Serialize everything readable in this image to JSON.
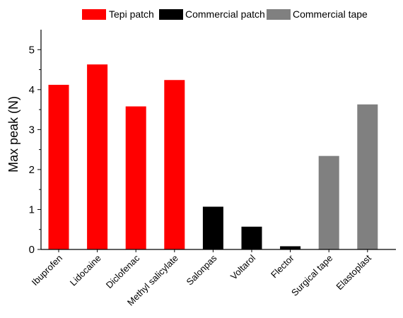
{
  "chart_data": {
    "type": "bar",
    "title": "",
    "xlabel": "",
    "ylabel": "Max peak (N)",
    "ylim": [
      0,
      5.5
    ],
    "yticks": [
      0,
      1,
      2,
      3,
      4,
      5
    ],
    "grid": false,
    "legend_position": "top",
    "categories": [
      "Ibuprofen",
      "Lidocaine",
      "Diclofenac",
      "Methyl salicylate",
      "Salonpas",
      "Voltarol",
      "Flector",
      "Surgical tape",
      "Elastoplast"
    ],
    "values": [
      4.12,
      4.63,
      3.58,
      4.24,
      1.07,
      0.57,
      0.08,
      2.34,
      3.63
    ],
    "groups": [
      "Tepi patch",
      "Tepi patch",
      "Tepi patch",
      "Tepi patch",
      "Commercial patch",
      "Commercial patch",
      "Commercial patch",
      "Commercial tape",
      "Commercial tape"
    ],
    "legend": [
      {
        "name": "Tepi patch",
        "color": "#ff0000"
      },
      {
        "name": "Commercial patch",
        "color": "#000000"
      },
      {
        "name": "Commercial tape",
        "color": "#808080"
      }
    ]
  }
}
